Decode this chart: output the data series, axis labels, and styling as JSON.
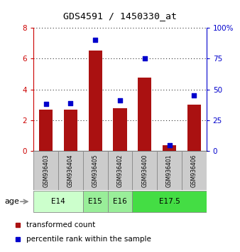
{
  "title": "GDS4591 / 1450330_at",
  "samples": [
    "GSM936403",
    "GSM936404",
    "GSM936405",
    "GSM936402",
    "GSM936400",
    "GSM936401",
    "GSM936406"
  ],
  "transformed_count": [
    2.7,
    2.7,
    6.5,
    2.8,
    4.75,
    0.4,
    3.0
  ],
  "percentile_rank": [
    38,
    39,
    90,
    41,
    75,
    5,
    45
  ],
  "bar_color": "#aa1111",
  "marker_color": "#0000cc",
  "left_axis_color": "#cc0000",
  "right_axis_color": "#0000cc",
  "ylim_left": [
    0,
    8
  ],
  "ylim_right": [
    0,
    100
  ],
  "left_ticks": [
    0,
    2,
    4,
    6,
    8
  ],
  "right_ticks": [
    0,
    25,
    50,
    75,
    100
  ],
  "grid_color": "#000000",
  "sample_box_color": "#cccccc",
  "age_data": [
    {
      "label": "E14",
      "start": 0,
      "end": 1,
      "color": "#ccffcc"
    },
    {
      "label": "E15",
      "start": 2,
      "end": 2,
      "color": "#99ee99"
    },
    {
      "label": "E16",
      "start": 3,
      "end": 3,
      "color": "#99ee99"
    },
    {
      "label": "E17.5",
      "start": 4,
      "end": 6,
      "color": "#44dd44"
    }
  ],
  "age_label": "age",
  "legend_red_label": "transformed count",
  "legend_blue_label": "percentile rank within the sample"
}
